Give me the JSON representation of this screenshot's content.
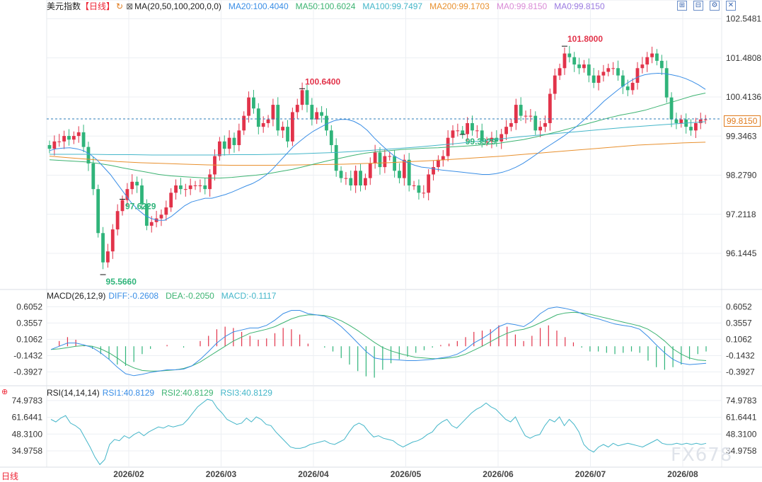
{
  "symbol": "美元指数",
  "period": "【日线】",
  "period_short": "日线",
  "ma_params": "MA(20,50,100,200,0,0)",
  "ma_legend": [
    {
      "text": "MA20:100.4040",
      "color": "#3a8ee6"
    },
    {
      "text": "MA50:100.6024",
      "color": "#3cb371"
    },
    {
      "text": "MA100:99.7497",
      "color": "#44b6c9"
    },
    {
      "text": "MA200:99.1703",
      "color": "#e8902e"
    },
    {
      "text": "MA0:99.8150",
      "color": "#d98ad6"
    },
    {
      "text": "MA0:99.8150",
      "color": "#9a7ae0"
    }
  ],
  "toolbar_icons": [
    "zoom-in-icon",
    "zoom-out-icon",
    "settings-icon",
    "close-icon"
  ],
  "current_price": "99.8150",
  "macd_params": "MACD(26,12,9)",
  "macd_legend": [
    {
      "text": "DIFF:-0.2608",
      "color": "#3a8ee6"
    },
    {
      "text": "DEA:-0.2050",
      "color": "#3cb371"
    },
    {
      "text": "MACD:-0.1117",
      "color": "#44b6c9"
    }
  ],
  "rsi_params": "RSI(14,14,14)",
  "rsi_legend": [
    {
      "text": "RSI1:40.8129",
      "color": "#3a8ee6"
    },
    {
      "text": "RSI2:40.8129",
      "color": "#3cb371"
    },
    {
      "text": "RSI3:40.8129",
      "color": "#44b6c9"
    }
  ],
  "watermark": "FX678",
  "colors": {
    "up": "#e2334a",
    "down": "#2fb47a",
    "grid": "#eceff3",
    "price_line": "#2a7bb8",
    "ma200": "#e8902e"
  },
  "chart_data": {
    "type": "candlestick",
    "x_labels": [
      "2026/02",
      "2026/03",
      "2026/04",
      "2026/05",
      "2026/06",
      "2026/07",
      "2026/08"
    ],
    "price_ticks": [
      "102.5481",
      "101.4808",
      "100.4136",
      "99.3463",
      "98.2790",
      "97.2118",
      "96.1445"
    ],
    "price_ylim": [
      95.18,
      102.77
    ],
    "annotations": [
      {
        "text": "100.6400",
        "value": 100.64,
        "color": "#e2334a"
      },
      {
        "text": "101.8000",
        "value": 101.8,
        "color": "#e2334a"
      },
      {
        "text": "95.5660",
        "value": 95.566,
        "color": "#2fb47a"
      },
      {
        "text": "97.6229",
        "value": 97.6229,
        "color": "#2fb47a"
      },
      {
        "text": "99.3929",
        "value": 99.3929,
        "color": "#2fb47a"
      }
    ],
    "closes": [
      99.0,
      99.2,
      99.2,
      99.35,
      99.25,
      99.35,
      99.45,
      99.05,
      98.6,
      97.9,
      96.7,
      95.9,
      96.2,
      96.8,
      97.3,
      97.6,
      97.9,
      98.1,
      98.0,
      97.5,
      96.9,
      97.0,
      97.1,
      97.2,
      97.4,
      97.8,
      98.0,
      97.9,
      97.9,
      98.0,
      98.0,
      98.0,
      97.9,
      98.3,
      98.8,
      99.2,
      99.0,
      99.3,
      99.1,
      99.5,
      99.9,
      100.4,
      100.1,
      99.6,
      99.7,
      99.8,
      100.2,
      99.5,
      99.6,
      99.2,
      100.0,
      100.2,
      100.6,
      100.2,
      99.8,
      100.0,
      99.9,
      99.5,
      99.1,
      98.4,
      98.2,
      98.2,
      98.0,
      98.4,
      98.0,
      98.2,
      98.6,
      98.9,
      98.5,
      98.8,
      98.8,
      98.4,
      98.2,
      98.7,
      98.0,
      98.0,
      97.8,
      97.8,
      98.3,
      98.5,
      98.7,
      98.8,
      99.3,
      99.5,
      99.5,
      99.4,
      99.7,
      99.5,
      99.5,
      99.2,
      99.2,
      99.3,
      99.2,
      99.4,
      99.6,
      99.7,
      100.2,
      99.9,
      99.9,
      99.9,
      99.5,
      99.6,
      99.7,
      100.5,
      101.0,
      101.2,
      101.6,
      101.5,
      101.3,
      101.2,
      101.3,
      101.0,
      100.8,
      101.0,
      101.1,
      101.2,
      101.2,
      101.0,
      100.7,
      100.6,
      100.8,
      101.2,
      101.3,
      101.5,
      101.6,
      101.4,
      101.2,
      100.4,
      99.8,
      99.7,
      99.8,
      99.6,
      99.5,
      99.7,
      99.8,
      99.8
    ],
    "volatility": 0.35,
    "ma20": [
      98.95,
      99.0,
      99.02,
      99.03,
      99.0,
      98.95,
      98.85,
      98.7,
      98.5,
      98.3,
      98.05,
      97.8,
      97.55,
      97.35,
      97.2,
      97.1,
      97.05,
      97.05,
      97.15,
      97.3,
      97.45,
      97.55,
      97.6,
      97.65,
      97.65,
      97.7,
      97.75,
      97.82,
      97.9,
      97.98,
      98.05,
      98.15,
      98.28,
      98.45,
      98.65,
      98.85,
      99.05,
      99.2,
      99.35,
      99.48,
      99.58,
      99.68,
      99.76,
      99.8,
      99.8,
      99.75,
      99.65,
      99.5,
      99.3,
      99.12,
      98.95,
      98.8,
      98.7,
      98.62,
      98.55,
      98.5,
      98.48,
      98.45,
      98.42,
      98.4,
      98.38,
      98.36,
      98.34,
      98.32,
      98.3,
      98.3,
      98.32,
      98.36,
      98.42,
      98.5,
      98.6,
      98.72,
      98.85,
      98.98,
      99.1,
      99.22,
      99.34,
      99.48,
      99.62,
      99.78,
      99.95,
      100.12,
      100.3,
      100.45,
      100.6,
      100.74,
      100.86,
      100.96,
      101.02,
      101.05,
      101.06,
      101.05,
      101.02,
      100.98,
      100.92,
      100.84,
      100.74,
      100.62
    ],
    "ma50": [
      98.7,
      98.68,
      98.66,
      98.64,
      98.6,
      98.55,
      98.48,
      98.42,
      98.36,
      98.3,
      98.26,
      98.24,
      98.22,
      98.2,
      98.2,
      98.22,
      98.25,
      98.28,
      98.32,
      98.38,
      98.44,
      98.52,
      98.6,
      98.68,
      98.75,
      98.82,
      98.88,
      98.92,
      98.95,
      98.98,
      99.0,
      99.02,
      99.03,
      99.05,
      99.07,
      99.09,
      99.12,
      99.15,
      99.2,
      99.25,
      99.32,
      99.4,
      99.48,
      99.57,
      99.66,
      99.75,
      99.84,
      99.92,
      99.98,
      100.05,
      100.15,
      100.25,
      100.35,
      100.45,
      100.52
    ],
    "ma100": [
      98.85,
      98.85,
      98.85,
      98.84,
      98.84,
      98.83,
      98.83,
      98.83,
      98.83,
      98.84,
      98.84,
      98.85,
      98.86,
      98.88,
      98.9,
      98.93,
      98.97,
      99.01,
      99.05,
      99.1,
      99.15,
      99.21,
      99.27,
      99.33,
      99.38,
      99.43,
      99.48,
      99.53,
      99.58,
      99.62,
      99.66,
      99.7,
      99.74
    ],
    "ma200": [
      98.8,
      98.75,
      98.7,
      98.65,
      98.62,
      98.6,
      98.58,
      98.56,
      98.55,
      98.55,
      98.55,
      98.56,
      98.57,
      98.58,
      98.6,
      98.62,
      98.65,
      98.68,
      98.72,
      98.76,
      98.8,
      98.85,
      98.9,
      98.95,
      99.0,
      99.05,
      99.1,
      99.13,
      99.16,
      99.18
    ],
    "macd_ticks": [
      "0.6052",
      "0.3557",
      "0.1062",
      "-0.1432",
      "-0.3927"
    ],
    "macd_ylim": [
      -0.55,
      0.75
    ],
    "diff": [
      -0.05,
      0.0,
      0.05,
      0.05,
      0.02,
      -0.02,
      -0.1,
      -0.2,
      -0.32,
      -0.42,
      -0.45,
      -0.43,
      -0.4,
      -0.38,
      -0.36,
      -0.36,
      -0.35,
      -0.3,
      -0.2,
      -0.08,
      0.05,
      0.15,
      0.22,
      0.25,
      0.28,
      0.28,
      0.32,
      0.4,
      0.5,
      0.55,
      0.55,
      0.5,
      0.48,
      0.46,
      0.4,
      0.3,
      0.18,
      0.05,
      -0.08,
      -0.18,
      -0.2,
      -0.2,
      -0.21,
      -0.22,
      -0.22,
      -0.21,
      -0.2,
      -0.18,
      -0.16,
      -0.12,
      -0.05,
      0.05,
      0.12,
      0.2,
      0.3,
      0.35,
      0.33,
      0.3,
      0.38,
      0.5,
      0.58,
      0.6,
      0.58,
      0.55,
      0.5,
      0.45,
      0.42,
      0.38,
      0.34,
      0.32,
      0.3,
      0.26,
      0.15,
      0.02,
      -0.1,
      -0.2,
      -0.26,
      -0.28,
      -0.27,
      -0.26
    ],
    "dea": [
      -0.05,
      -0.04,
      -0.02,
      0.0,
      0.01,
      0.0,
      -0.04,
      -0.1,
      -0.18,
      -0.27,
      -0.33,
      -0.37,
      -0.38,
      -0.38,
      -0.37,
      -0.36,
      -0.34,
      -0.3,
      -0.24,
      -0.16,
      -0.08,
      0.0,
      0.08,
      0.14,
      0.2,
      0.23,
      0.26,
      0.3,
      0.36,
      0.42,
      0.46,
      0.48,
      0.48,
      0.47,
      0.44,
      0.39,
      0.32,
      0.24,
      0.15,
      0.06,
      -0.02,
      -0.07,
      -0.11,
      -0.14,
      -0.17,
      -0.18,
      -0.19,
      -0.19,
      -0.18,
      -0.16,
      -0.12,
      -0.06,
      0.0,
      0.07,
      0.14,
      0.2,
      0.24,
      0.26,
      0.3,
      0.36,
      0.42,
      0.48,
      0.51,
      0.52,
      0.51,
      0.49,
      0.46,
      0.43,
      0.4,
      0.37,
      0.34,
      0.31,
      0.26,
      0.18,
      0.08,
      -0.04,
      -0.12,
      -0.18,
      -0.21,
      -0.22
    ],
    "rsi_ticks": [
      "74.9783",
      "61.6441",
      "48.3100",
      "34.9758"
    ],
    "rsi_ylim": [
      22,
      80
    ],
    "rsi": [
      60,
      58,
      61,
      63,
      57,
      55,
      52,
      45,
      38,
      30,
      24,
      28,
      40,
      44,
      43,
      47,
      45,
      48,
      50,
      47,
      50,
      52,
      54,
      53,
      55,
      54,
      55,
      56,
      60,
      65,
      70,
      73,
      76,
      75,
      69,
      65,
      60,
      58,
      56,
      57,
      61,
      58,
      62,
      60,
      56,
      55,
      50,
      46,
      42,
      38,
      37,
      37,
      38,
      40,
      41,
      42,
      43,
      41,
      40,
      42,
      44,
      50,
      55,
      57,
      55,
      50,
      46,
      47,
      45,
      44,
      43,
      40,
      38,
      40,
      42,
      43,
      45,
      48,
      50,
      55,
      58,
      60,
      55,
      53,
      57,
      61,
      65,
      68,
      70,
      73,
      70,
      68,
      64,
      60,
      58,
      62,
      54,
      47,
      45,
      47,
      48,
      55,
      60,
      58,
      62,
      55,
      60,
      56,
      50,
      40,
      36,
      34,
      38,
      40,
      38,
      41,
      39,
      40,
      41,
      40,
      39,
      38,
      40,
      42,
      44,
      41,
      40,
      40,
      41,
      40,
      41,
      40,
      41,
      40,
      41
    ]
  }
}
